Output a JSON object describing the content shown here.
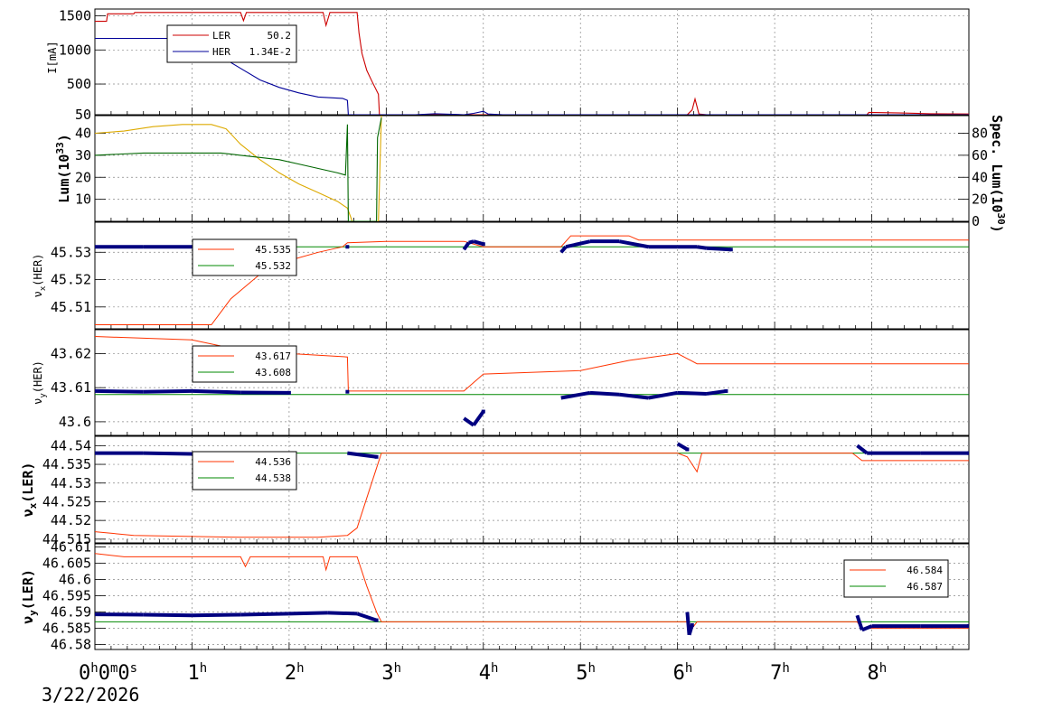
{
  "chart_data": [
    {
      "type": "line",
      "panel": "beam-current",
      "ylabel": "I[mA]",
      "ylim": [
        50,
        1600
      ],
      "yticks": [
        "1500",
        "1000",
        "500",
        "50"
      ],
      "ytick_values": [
        1500,
        1000,
        500,
        50
      ],
      "legend": {
        "entries": [
          {
            "label": "LER",
            "value": "50.2",
            "color": "#cc0000"
          },
          {
            "label": "HER",
            "value": "1.34E-2",
            "color": "#000099"
          }
        ]
      },
      "series": [
        {
          "name": "LER",
          "color": "#cc0000",
          "points": [
            [
              0,
              1420
            ],
            [
              0.12,
              1420
            ],
            [
              0.13,
              1530
            ],
            [
              0.4,
              1530
            ],
            [
              0.41,
              1550
            ],
            [
              1.5,
              1550
            ],
            [
              1.53,
              1430
            ],
            [
              1.56,
              1550
            ],
            [
              2.35,
              1550
            ],
            [
              2.38,
              1360
            ],
            [
              2.42,
              1550
            ],
            [
              2.7,
              1550
            ],
            [
              2.72,
              1250
            ],
            [
              2.75,
              950
            ],
            [
              2.8,
              700
            ],
            [
              2.85,
              550
            ],
            [
              2.92,
              350
            ],
            [
              2.93,
              50
            ],
            [
              4.0,
              50
            ],
            [
              6.1,
              50
            ],
            [
              6.15,
              120
            ],
            [
              6.18,
              280
            ],
            [
              6.22,
              60
            ],
            [
              6.3,
              50
            ],
            [
              7.95,
              50
            ],
            [
              7.97,
              85
            ],
            [
              8.3,
              75
            ],
            [
              8.6,
              65
            ],
            [
              9.0,
              60
            ]
          ]
        },
        {
          "name": "HER",
          "color": "#000099",
          "points": [
            [
              0,
              1170
            ],
            [
              1.1,
              1170
            ],
            [
              1.2,
              1020
            ],
            [
              1.3,
              900
            ],
            [
              1.5,
              730
            ],
            [
              1.7,
              560
            ],
            [
              1.9,
              450
            ],
            [
              2.1,
              370
            ],
            [
              2.3,
              310
            ],
            [
              2.55,
              290
            ],
            [
              2.6,
              260
            ],
            [
              2.61,
              50
            ],
            [
              3.3,
              50
            ],
            [
              3.5,
              65
            ],
            [
              3.8,
              50
            ],
            [
              3.9,
              70
            ],
            [
              4.0,
              100
            ],
            [
              4.05,
              60
            ],
            [
              4.2,
              50
            ],
            [
              9.0,
              50
            ]
          ]
        }
      ]
    },
    {
      "type": "line",
      "panel": "luminosity",
      "ylabel": "Lum(10^33)",
      "ylabel_text": "Lum(10",
      "ylabel_sup": "33",
      "ylabel_close": ")",
      "ylim": [
        0,
        48
      ],
      "yticks": [
        "40",
        "30",
        "20",
        "10"
      ],
      "ytick_values": [
        40,
        30,
        20,
        10
      ],
      "y2label_text": "Spec. Lum(10",
      "y2label_sup": "30",
      "y2label_close": ")",
      "y2lim": [
        0,
        96
      ],
      "y2ticks": [
        "80",
        "60",
        "40",
        "20",
        "0"
      ],
      "y2tick_values": [
        80,
        60,
        40,
        20,
        0
      ],
      "series": [
        {
          "color": "#ddaa00",
          "points": [
            [
              0,
              40
            ],
            [
              0.3,
              41
            ],
            [
              0.6,
              43
            ],
            [
              0.9,
              44
            ],
            [
              1.2,
              44
            ],
            [
              1.35,
              42
            ],
            [
              1.5,
              35
            ],
            [
              1.7,
              28
            ],
            [
              1.9,
              22
            ],
            [
              2.1,
              17
            ],
            [
              2.3,
              13
            ],
            [
              2.5,
              9
            ],
            [
              2.6,
              6
            ],
            [
              2.65,
              0
            ],
            [
              2.92,
              0
            ],
            [
              2.95,
              48
            ]
          ]
        },
        {
          "color": "#006600",
          "points": [
            [
              0,
              30
            ],
            [
              0.5,
              31
            ],
            [
              1.0,
              31
            ],
            [
              1.3,
              31
            ],
            [
              1.5,
              30
            ],
            [
              1.7,
              29
            ],
            [
              1.9,
              28
            ],
            [
              2.1,
              26
            ],
            [
              2.3,
              24
            ],
            [
              2.5,
              22
            ],
            [
              2.58,
              21
            ],
            [
              2.6,
              44
            ],
            [
              2.61,
              0
            ],
            [
              2.9,
              0
            ],
            [
              2.91,
              38
            ],
            [
              2.95,
              47
            ]
          ]
        }
      ]
    },
    {
      "type": "scatter",
      "panel": "nu-x-her",
      "ylabel": "νx(HER)",
      "ylabel_main": "ν",
      "ylabel_sub": "x",
      "ylabel_rest": "(HER)",
      "ylim": [
        45.502,
        45.541
      ],
      "yticks": [
        "45.53",
        "45.52",
        "45.51"
      ],
      "ytick_values": [
        45.53,
        45.52,
        45.51
      ],
      "legend": {
        "entries": [
          {
            "label": "",
            "value": "45.535",
            "color": "#ff3300"
          },
          {
            "label": "",
            "value": "45.532",
            "color": "#008800"
          }
        ]
      },
      "setpoint_line": {
        "color": "#ff3300",
        "points": [
          [
            0,
            45.5035
          ],
          [
            1.2,
            45.5035
          ],
          [
            1.4,
            45.513
          ],
          [
            1.7,
            45.522
          ],
          [
            2.0,
            45.527
          ],
          [
            2.3,
            45.53
          ],
          [
            2.55,
            45.532
          ],
          [
            2.6,
            45.5335
          ],
          [
            3.0,
            45.534
          ],
          [
            3.8,
            45.534
          ],
          [
            4.0,
            45.532
          ],
          [
            4.8,
            45.532
          ],
          [
            4.9,
            45.536
          ],
          [
            5.5,
            45.536
          ],
          [
            5.6,
            45.5345
          ],
          [
            9.0,
            45.5345
          ]
        ]
      },
      "reference_line": {
        "color": "#008800",
        "value": 45.532
      },
      "points_series": {
        "color": "#000080",
        "points": [
          [
            0,
            45.532
          ],
          [
            0.5,
            45.532
          ],
          [
            1.0,
            45.532
          ],
          [
            1.5,
            45.5318
          ],
          [
            2.0,
            45.532
          ],
          [
            2.6,
            45.532
          ],
          [
            3.8,
            45.531
          ],
          [
            3.85,
            45.5335
          ],
          [
            3.9,
            45.534
          ],
          [
            4.0,
            45.533
          ],
          [
            4.8,
            45.53
          ],
          [
            4.85,
            45.532
          ],
          [
            5.1,
            45.534
          ],
          [
            5.4,
            45.534
          ],
          [
            5.7,
            45.532
          ],
          [
            6.0,
            45.532
          ],
          [
            6.2,
            45.532
          ],
          [
            6.3,
            45.5315
          ],
          [
            6.55,
            45.531
          ]
        ]
      }
    },
    {
      "type": "scatter",
      "panel": "nu-y-her",
      "ylabel": "νy(HER)",
      "ylabel_main": "ν",
      "ylabel_sub": "y",
      "ylabel_rest": "(HER)",
      "ylim": [
        43.596,
        43.627
      ],
      "yticks": [
        "43.62",
        "43.61",
        "43.6"
      ],
      "ytick_values": [
        43.62,
        43.61,
        43.6
      ],
      "legend": {
        "entries": [
          {
            "label": "",
            "value": "43.617",
            "color": "#ff3300"
          },
          {
            "label": "",
            "value": "43.608",
            "color": "#008800"
          }
        ]
      },
      "setpoint_line": {
        "color": "#ff3300",
        "points": [
          [
            0,
            43.625
          ],
          [
            1.0,
            43.624
          ],
          [
            1.5,
            43.621
          ],
          [
            2.0,
            43.62
          ],
          [
            2.6,
            43.619
          ],
          [
            2.61,
            43.609
          ],
          [
            3.8,
            43.609
          ],
          [
            4.0,
            43.614
          ],
          [
            5.0,
            43.615
          ],
          [
            5.5,
            43.618
          ],
          [
            6.0,
            43.62
          ],
          [
            6.2,
            43.617
          ],
          [
            9.0,
            43.617
          ]
        ]
      },
      "reference_line": {
        "color": "#008800",
        "value": 43.608
      },
      "points_series": {
        "color": "#000080",
        "points": [
          [
            0,
            43.609
          ],
          [
            0.5,
            43.6088
          ],
          [
            1.0,
            43.609
          ],
          [
            1.5,
            43.6086
          ],
          [
            2.0,
            43.6085
          ],
          [
            2.6,
            43.6088
          ],
          [
            3.8,
            43.601
          ],
          [
            3.9,
            43.599
          ],
          [
            4.0,
            43.603
          ],
          [
            4.8,
            43.607
          ],
          [
            5.1,
            43.6085
          ],
          [
            5.4,
            43.608
          ],
          [
            5.7,
            43.607
          ],
          [
            6.0,
            43.6085
          ],
          [
            6.3,
            43.6082
          ],
          [
            6.5,
            43.609
          ]
        ]
      }
    },
    {
      "type": "scatter",
      "panel": "nu-x-ler",
      "ylabel": "νx(LER)",
      "ylabel_main": "ν",
      "ylabel_sub": "x",
      "ylabel_rest": "(LER)",
      "ylim": [
        44.514,
        44.5425
      ],
      "yticks": [
        "44.54",
        "44.535",
        "44.53",
        "44.525",
        "44.52",
        "44.515"
      ],
      "ytick_values": [
        44.54,
        44.535,
        44.53,
        44.525,
        44.52,
        44.515
      ],
      "legend": {
        "entries": [
          {
            "label": "",
            "value": "44.536",
            "color": "#ff3300"
          },
          {
            "label": "",
            "value": "44.538",
            "color": "#008800"
          }
        ]
      },
      "setpoint_line": {
        "color": "#ff3300",
        "points": [
          [
            0,
            44.517
          ],
          [
            0.4,
            44.516
          ],
          [
            1.5,
            44.5155
          ],
          [
            2.3,
            44.5155
          ],
          [
            2.6,
            44.516
          ],
          [
            2.7,
            44.518
          ],
          [
            2.8,
            44.526
          ],
          [
            2.9,
            44.534
          ],
          [
            2.95,
            44.538
          ],
          [
            6.0,
            44.538
          ],
          [
            6.1,
            44.537
          ],
          [
            6.2,
            44.533
          ],
          [
            6.25,
            44.538
          ],
          [
            7.8,
            44.538
          ],
          [
            7.9,
            44.536
          ],
          [
            9.0,
            44.536
          ]
        ]
      },
      "reference_line": {
        "color": "#008800",
        "value": 44.538
      },
      "points_series": {
        "color": "#000080",
        "points": [
          [
            0,
            44.538
          ],
          [
            0.5,
            44.538
          ],
          [
            1.0,
            44.5378
          ],
          [
            1.5,
            44.538
          ],
          [
            2.0,
            44.538
          ],
          [
            2.6,
            44.538
          ],
          [
            2.9,
            44.537
          ],
          [
            6.0,
            44.5405
          ],
          [
            6.1,
            44.539
          ],
          [
            7.85,
            44.54
          ],
          [
            7.95,
            44.538
          ],
          [
            8.5,
            44.538
          ],
          [
            9.0,
            44.538
          ]
        ]
      }
    },
    {
      "type": "scatter",
      "panel": "nu-y-ler",
      "ylabel": "νy(LER)",
      "ylabel_main": "ν",
      "ylabel_sub": "y",
      "ylabel_rest": "(LER)",
      "ylim": [
        44.0,
        46.611
      ],
      "ylim_real": [
        46.5785,
        46.611
      ],
      "yticks": [
        "46.61",
        "46.605",
        "46.6",
        "46.595",
        "46.59",
        "46.585",
        "46.58"
      ],
      "ytick_values": [
        46.61,
        46.605,
        46.6,
        46.595,
        46.59,
        46.585,
        46.58
      ],
      "legend": {
        "entries": [
          {
            "label": "",
            "value": "46.584",
            "color": "#ff3300"
          },
          {
            "label": "",
            "value": "46.587",
            "color": "#008800"
          }
        ]
      },
      "setpoint_line": {
        "color": "#ff3300",
        "points": [
          [
            0,
            46.608
          ],
          [
            0.3,
            46.607
          ],
          [
            1.5,
            46.607
          ],
          [
            1.55,
            46.604
          ],
          [
            1.6,
            46.607
          ],
          [
            2.35,
            46.607
          ],
          [
            2.38,
            46.603
          ],
          [
            2.42,
            46.607
          ],
          [
            2.7,
            46.607
          ],
          [
            2.8,
            46.598
          ],
          [
            2.9,
            46.59
          ],
          [
            2.95,
            46.587
          ],
          [
            6.1,
            46.587
          ],
          [
            6.15,
            46.585
          ],
          [
            6.2,
            46.587
          ],
          [
            7.85,
            46.587
          ],
          [
            7.9,
            46.585
          ],
          [
            8.0,
            46.585
          ],
          [
            9.0,
            46.585
          ]
        ]
      },
      "reference_line": {
        "color": "#008800",
        "value": 46.587
      },
      "points_series": {
        "color": "#000080",
        "points": [
          [
            0,
            46.5893
          ],
          [
            0.5,
            46.5892
          ],
          [
            1.0,
            46.589
          ],
          [
            1.5,
            46.5892
          ],
          [
            2.0,
            46.5895
          ],
          [
            2.4,
            46.5898
          ],
          [
            2.7,
            46.5895
          ],
          [
            2.9,
            46.5875
          ],
          [
            6.1,
            46.59
          ],
          [
            6.12,
            46.583
          ],
          [
            6.15,
            46.586
          ],
          [
            7.85,
            46.589
          ],
          [
            7.9,
            46.5845
          ],
          [
            8.0,
            46.5857
          ],
          [
            8.5,
            46.5857
          ],
          [
            9.0,
            46.5857
          ]
        ]
      }
    }
  ],
  "xaxis": {
    "xlim": [
      0,
      9
    ],
    "ticks": [
      {
        "value": 0,
        "label": "0",
        "sup": "h",
        "extra": "0",
        "extra_sup": "m",
        "extra2": "0",
        "extra2_sup": "s"
      },
      {
        "value": 1,
        "label": "1",
        "sup": "h"
      },
      {
        "value": 2,
        "label": "2",
        "sup": "h"
      },
      {
        "value": 3,
        "label": "3",
        "sup": "h"
      },
      {
        "value": 4,
        "label": "4",
        "sup": "h"
      },
      {
        "value": 5,
        "label": "5",
        "sup": "h"
      },
      {
        "value": 6,
        "label": "6",
        "sup": "h"
      },
      {
        "value": 7,
        "label": "7",
        "sup": "h"
      },
      {
        "value": 8,
        "label": "8",
        "sup": "h"
      }
    ],
    "date": "3/22/2026"
  }
}
